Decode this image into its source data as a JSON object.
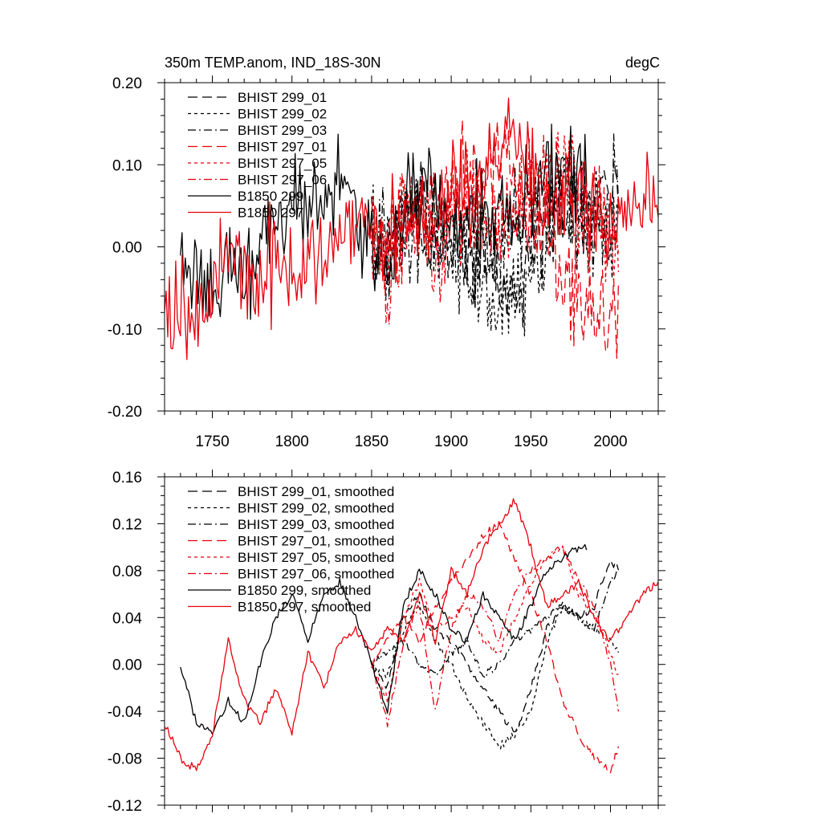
{
  "chart_data": [
    {
      "type": "line",
      "title": "350m TEMP.anom, IND_18S-30N",
      "units": "degC",
      "xlim": [
        1720,
        2030
      ],
      "ylim": [
        -0.2,
        0.2
      ],
      "xticks": [
        1750,
        1800,
        1850,
        1900,
        1950,
        2000
      ],
      "xtick_labels": [
        "1750",
        "1800",
        "1850",
        "1900",
        "1950",
        "2000"
      ],
      "yticks": [
        -0.2,
        -0.1,
        0.0,
        0.1,
        0.2
      ],
      "ytick_labels": [
        "-0.20",
        "-0.10",
        "0.00",
        "0.10",
        "0.20"
      ],
      "legend_position": "top-left",
      "series": [
        {
          "name": "BHIST 299_01",
          "color": "#000000",
          "dash": "long-dash",
          "mode": "noisy",
          "x": [
            1850,
            1860,
            1870,
            1880,
            1890,
            1900,
            1910,
            1920,
            1930,
            1940,
            1950,
            1960,
            1970,
            1980,
            1990,
            2000,
            2005
          ],
          "values": [
            0.0,
            -0.02,
            0.04,
            0.06,
            0.03,
            0.02,
            0.0,
            -0.02,
            -0.04,
            -0.06,
            -0.02,
            0.03,
            0.05,
            0.04,
            0.05,
            0.09,
            0.08
          ]
        },
        {
          "name": "BHIST 299_02",
          "color": "#000000",
          "dash": "short-dash",
          "mode": "noisy",
          "x": [
            1850,
            1860,
            1870,
            1880,
            1890,
            1900,
            1910,
            1920,
            1930,
            1940,
            1950,
            1960,
            1970,
            1980,
            1990,
            2000,
            2005
          ],
          "values": [
            0.0,
            -0.01,
            0.03,
            0.05,
            0.02,
            0.0,
            -0.03,
            -0.05,
            -0.07,
            -0.06,
            -0.04,
            0.02,
            0.05,
            0.04,
            0.03,
            0.02,
            0.01
          ]
        },
        {
          "name": "BHIST 299_03",
          "color": "#000000",
          "dash": "dash-dot",
          "mode": "noisy",
          "x": [
            1850,
            1860,
            1870,
            1880,
            1890,
            1900,
            1910,
            1920,
            1930,
            1940,
            1950,
            1960,
            1970,
            1980,
            1990,
            2000,
            2005
          ],
          "values": [
            0.0,
            0.01,
            0.02,
            0.0,
            -0.01,
            0.01,
            0.02,
            -0.01,
            0.0,
            0.02,
            0.03,
            0.04,
            0.05,
            0.04,
            0.03,
            0.07,
            0.08
          ]
        },
        {
          "name": "BHIST 297_01",
          "color": "#e8000b",
          "dash": "long-dash",
          "mode": "noisy",
          "x": [
            1850,
            1860,
            1870,
            1880,
            1890,
            1900,
            1910,
            1920,
            1930,
            1940,
            1950,
            1960,
            1970,
            1980,
            1990,
            2000,
            2005
          ],
          "values": [
            0.0,
            0.02,
            0.04,
            0.02,
            0.05,
            0.07,
            0.09,
            0.11,
            0.12,
            0.09,
            0.06,
            0.02,
            -0.03,
            -0.06,
            -0.08,
            -0.09,
            -0.07
          ]
        },
        {
          "name": "BHIST 297_05",
          "color": "#e8000b",
          "dash": "short-dash",
          "mode": "noisy",
          "x": [
            1850,
            1860,
            1870,
            1880,
            1890,
            1900,
            1910,
            1920,
            1930,
            1940,
            1950,
            1960,
            1970,
            1980,
            1990,
            2000,
            2005
          ],
          "values": [
            0.0,
            -0.03,
            0.04,
            0.07,
            0.03,
            0.04,
            0.05,
            0.02,
            0.01,
            0.04,
            0.07,
            0.09,
            0.1,
            0.06,
            0.04,
            0.01,
            -0.01
          ]
        },
        {
          "name": "BHIST 297_06",
          "color": "#e8000b",
          "dash": "dash-dot",
          "mode": "noisy",
          "x": [
            1850,
            1860,
            1870,
            1880,
            1890,
            1900,
            1910,
            1920,
            1930,
            1940,
            1950,
            1960,
            1970,
            1980,
            1990,
            2000,
            2005
          ],
          "values": [
            0.0,
            -0.05,
            0.02,
            0.05,
            -0.04,
            0.03,
            0.06,
            0.05,
            0.02,
            0.06,
            0.08,
            0.09,
            0.1,
            0.07,
            0.05,
            0.0,
            -0.04
          ]
        },
        {
          "name": "B1850 299",
          "color": "#000000",
          "dash": "solid",
          "mode": "noisy",
          "x": [
            1730,
            1740,
            1750,
            1760,
            1770,
            1780,
            1790,
            1800,
            1810,
            1820,
            1830,
            1840,
            1850,
            1860,
            1870,
            1880,
            1890,
            1900,
            1910,
            1920,
            1930,
            1940,
            1950,
            1960,
            1970,
            1980,
            1985
          ],
          "values": [
            0.0,
            -0.05,
            -0.06,
            -0.03,
            -0.05,
            0.0,
            0.04,
            0.06,
            0.02,
            0.06,
            0.07,
            0.04,
            0.0,
            -0.04,
            0.05,
            0.08,
            0.06,
            0.03,
            0.02,
            0.06,
            0.04,
            0.02,
            0.05,
            0.08,
            0.09,
            0.1,
            0.1
          ]
        },
        {
          "name": "B1850 297",
          "color": "#e8000b",
          "dash": "solid",
          "mode": "noisy",
          "x": [
            1720,
            1730,
            1740,
            1750,
            1760,
            1770,
            1780,
            1790,
            1800,
            1810,
            1820,
            1830,
            1840,
            1850,
            1860,
            1870,
            1880,
            1890,
            1900,
            1910,
            1920,
            1930,
            1940,
            1950,
            1960,
            1970,
            1980,
            1990,
            2000,
            2010,
            2020,
            2030
          ],
          "values": [
            -0.05,
            -0.08,
            -0.09,
            -0.06,
            0.02,
            -0.03,
            -0.05,
            -0.02,
            -0.06,
            0.01,
            -0.02,
            0.02,
            0.03,
            0.01,
            0.03,
            0.02,
            0.06,
            0.02,
            0.08,
            0.06,
            0.1,
            0.12,
            0.14,
            0.1,
            0.05,
            0.06,
            0.07,
            0.04,
            0.02,
            0.04,
            0.06,
            0.07
          ]
        }
      ]
    },
    {
      "type": "line",
      "title": "",
      "xlim": [
        1720,
        2030
      ],
      "ylim": [
        -0.12,
        0.16
      ],
      "xticks": [
        1750,
        1800,
        1850,
        1900,
        1950,
        2000
      ],
      "yticks": [
        -0.12,
        -0.08,
        -0.04,
        0.0,
        0.04,
        0.08,
        0.12,
        0.16
      ],
      "ytick_labels": [
        "-0.12",
        "-0.08",
        "-0.04",
        "0.00",
        "0.04",
        "0.08",
        "0.12",
        "0.16"
      ],
      "legend_position": "top-left",
      "series": [
        {
          "name": "BHIST 299_01, smoothed",
          "color": "#000000",
          "dash": "long-dash",
          "mode": "smooth",
          "x": [
            1850,
            1860,
            1870,
            1880,
            1890,
            1900,
            1910,
            1920,
            1930,
            1940,
            1950,
            1960,
            1970,
            1980,
            1990,
            2000,
            2005
          ],
          "values": [
            0.0,
            -0.02,
            0.04,
            0.06,
            0.03,
            0.02,
            0.0,
            -0.02,
            -0.04,
            -0.06,
            -0.02,
            0.03,
            0.05,
            0.04,
            0.05,
            0.09,
            0.08
          ]
        },
        {
          "name": "BHIST 299_02, smoothed",
          "color": "#000000",
          "dash": "short-dash",
          "mode": "smooth",
          "x": [
            1850,
            1860,
            1870,
            1880,
            1890,
            1900,
            1910,
            1920,
            1930,
            1940,
            1950,
            1960,
            1970,
            1980,
            1990,
            2000,
            2005
          ],
          "values": [
            0.0,
            -0.01,
            0.03,
            0.05,
            0.02,
            0.0,
            -0.03,
            -0.05,
            -0.07,
            -0.06,
            -0.04,
            0.02,
            0.05,
            0.04,
            0.03,
            0.02,
            0.01
          ]
        },
        {
          "name": "BHIST 299_03, smoothed",
          "color": "#000000",
          "dash": "dash-dot",
          "mode": "smooth",
          "x": [
            1850,
            1860,
            1870,
            1880,
            1890,
            1900,
            1910,
            1920,
            1930,
            1940,
            1950,
            1960,
            1970,
            1980,
            1990,
            2000,
            2005
          ],
          "values": [
            0.0,
            0.01,
            0.02,
            0.0,
            -0.01,
            0.01,
            0.02,
            -0.01,
            0.0,
            0.02,
            0.03,
            0.04,
            0.05,
            0.04,
            0.03,
            0.07,
            0.08
          ]
        },
        {
          "name": "BHIST 297_01, smoothed",
          "color": "#e8000b",
          "dash": "long-dash",
          "mode": "smooth",
          "x": [
            1850,
            1860,
            1870,
            1880,
            1890,
            1900,
            1910,
            1920,
            1930,
            1940,
            1950,
            1960,
            1970,
            1980,
            1990,
            2000,
            2005
          ],
          "values": [
            0.0,
            0.02,
            0.04,
            0.02,
            0.05,
            0.07,
            0.09,
            0.11,
            0.12,
            0.09,
            0.06,
            0.02,
            -0.03,
            -0.06,
            -0.08,
            -0.09,
            -0.07
          ]
        },
        {
          "name": "BHIST 297_05, smoothed",
          "color": "#e8000b",
          "dash": "short-dash",
          "mode": "smooth",
          "x": [
            1850,
            1860,
            1870,
            1880,
            1890,
            1900,
            1910,
            1920,
            1930,
            1940,
            1950,
            1960,
            1970,
            1980,
            1990,
            2000,
            2005
          ],
          "values": [
            0.0,
            -0.03,
            0.04,
            0.07,
            0.03,
            0.04,
            0.05,
            0.02,
            0.01,
            0.04,
            0.07,
            0.09,
            0.1,
            0.06,
            0.04,
            0.01,
            -0.01
          ]
        },
        {
          "name": "BHIST 297_06, smoothed",
          "color": "#e8000b",
          "dash": "dash-dot",
          "mode": "smooth",
          "x": [
            1850,
            1860,
            1870,
            1880,
            1890,
            1900,
            1910,
            1920,
            1930,
            1940,
            1950,
            1960,
            1970,
            1980,
            1990,
            2000,
            2005
          ],
          "values": [
            0.0,
            -0.05,
            0.02,
            0.05,
            -0.04,
            0.03,
            0.06,
            0.05,
            0.02,
            0.06,
            0.08,
            0.09,
            0.1,
            0.07,
            0.05,
            0.0,
            -0.04
          ]
        },
        {
          "name": "B1850 299, smoothed",
          "color": "#000000",
          "dash": "solid",
          "mode": "smooth",
          "x": [
            1730,
            1740,
            1750,
            1760,
            1770,
            1780,
            1790,
            1800,
            1810,
            1820,
            1830,
            1840,
            1850,
            1860,
            1870,
            1880,
            1890,
            1900,
            1910,
            1920,
            1930,
            1940,
            1950,
            1960,
            1970,
            1980,
            1985
          ],
          "values": [
            0.0,
            -0.05,
            -0.06,
            -0.03,
            -0.05,
            0.0,
            0.04,
            0.06,
            0.02,
            0.06,
            0.07,
            0.04,
            0.0,
            -0.04,
            0.05,
            0.08,
            0.06,
            0.03,
            0.02,
            0.06,
            0.04,
            0.02,
            0.05,
            0.08,
            0.09,
            0.1,
            0.1
          ]
        },
        {
          "name": "B1850 297, smoothed",
          "color": "#e8000b",
          "dash": "solid",
          "mode": "smooth",
          "x": [
            1720,
            1730,
            1740,
            1750,
            1760,
            1770,
            1780,
            1790,
            1800,
            1810,
            1820,
            1830,
            1840,
            1850,
            1860,
            1870,
            1880,
            1890,
            1900,
            1910,
            1920,
            1930,
            1940,
            1950,
            1960,
            1970,
            1980,
            1990,
            2000,
            2010,
            2020,
            2030
          ],
          "values": [
            -0.05,
            -0.08,
            -0.09,
            -0.06,
            0.02,
            -0.03,
            -0.05,
            -0.02,
            -0.06,
            0.01,
            -0.02,
            0.02,
            0.03,
            0.01,
            0.03,
            0.02,
            0.06,
            0.02,
            0.08,
            0.06,
            0.1,
            0.12,
            0.14,
            0.1,
            0.05,
            0.06,
            0.07,
            0.04,
            0.02,
            0.04,
            0.06,
            0.07
          ]
        }
      ]
    }
  ]
}
